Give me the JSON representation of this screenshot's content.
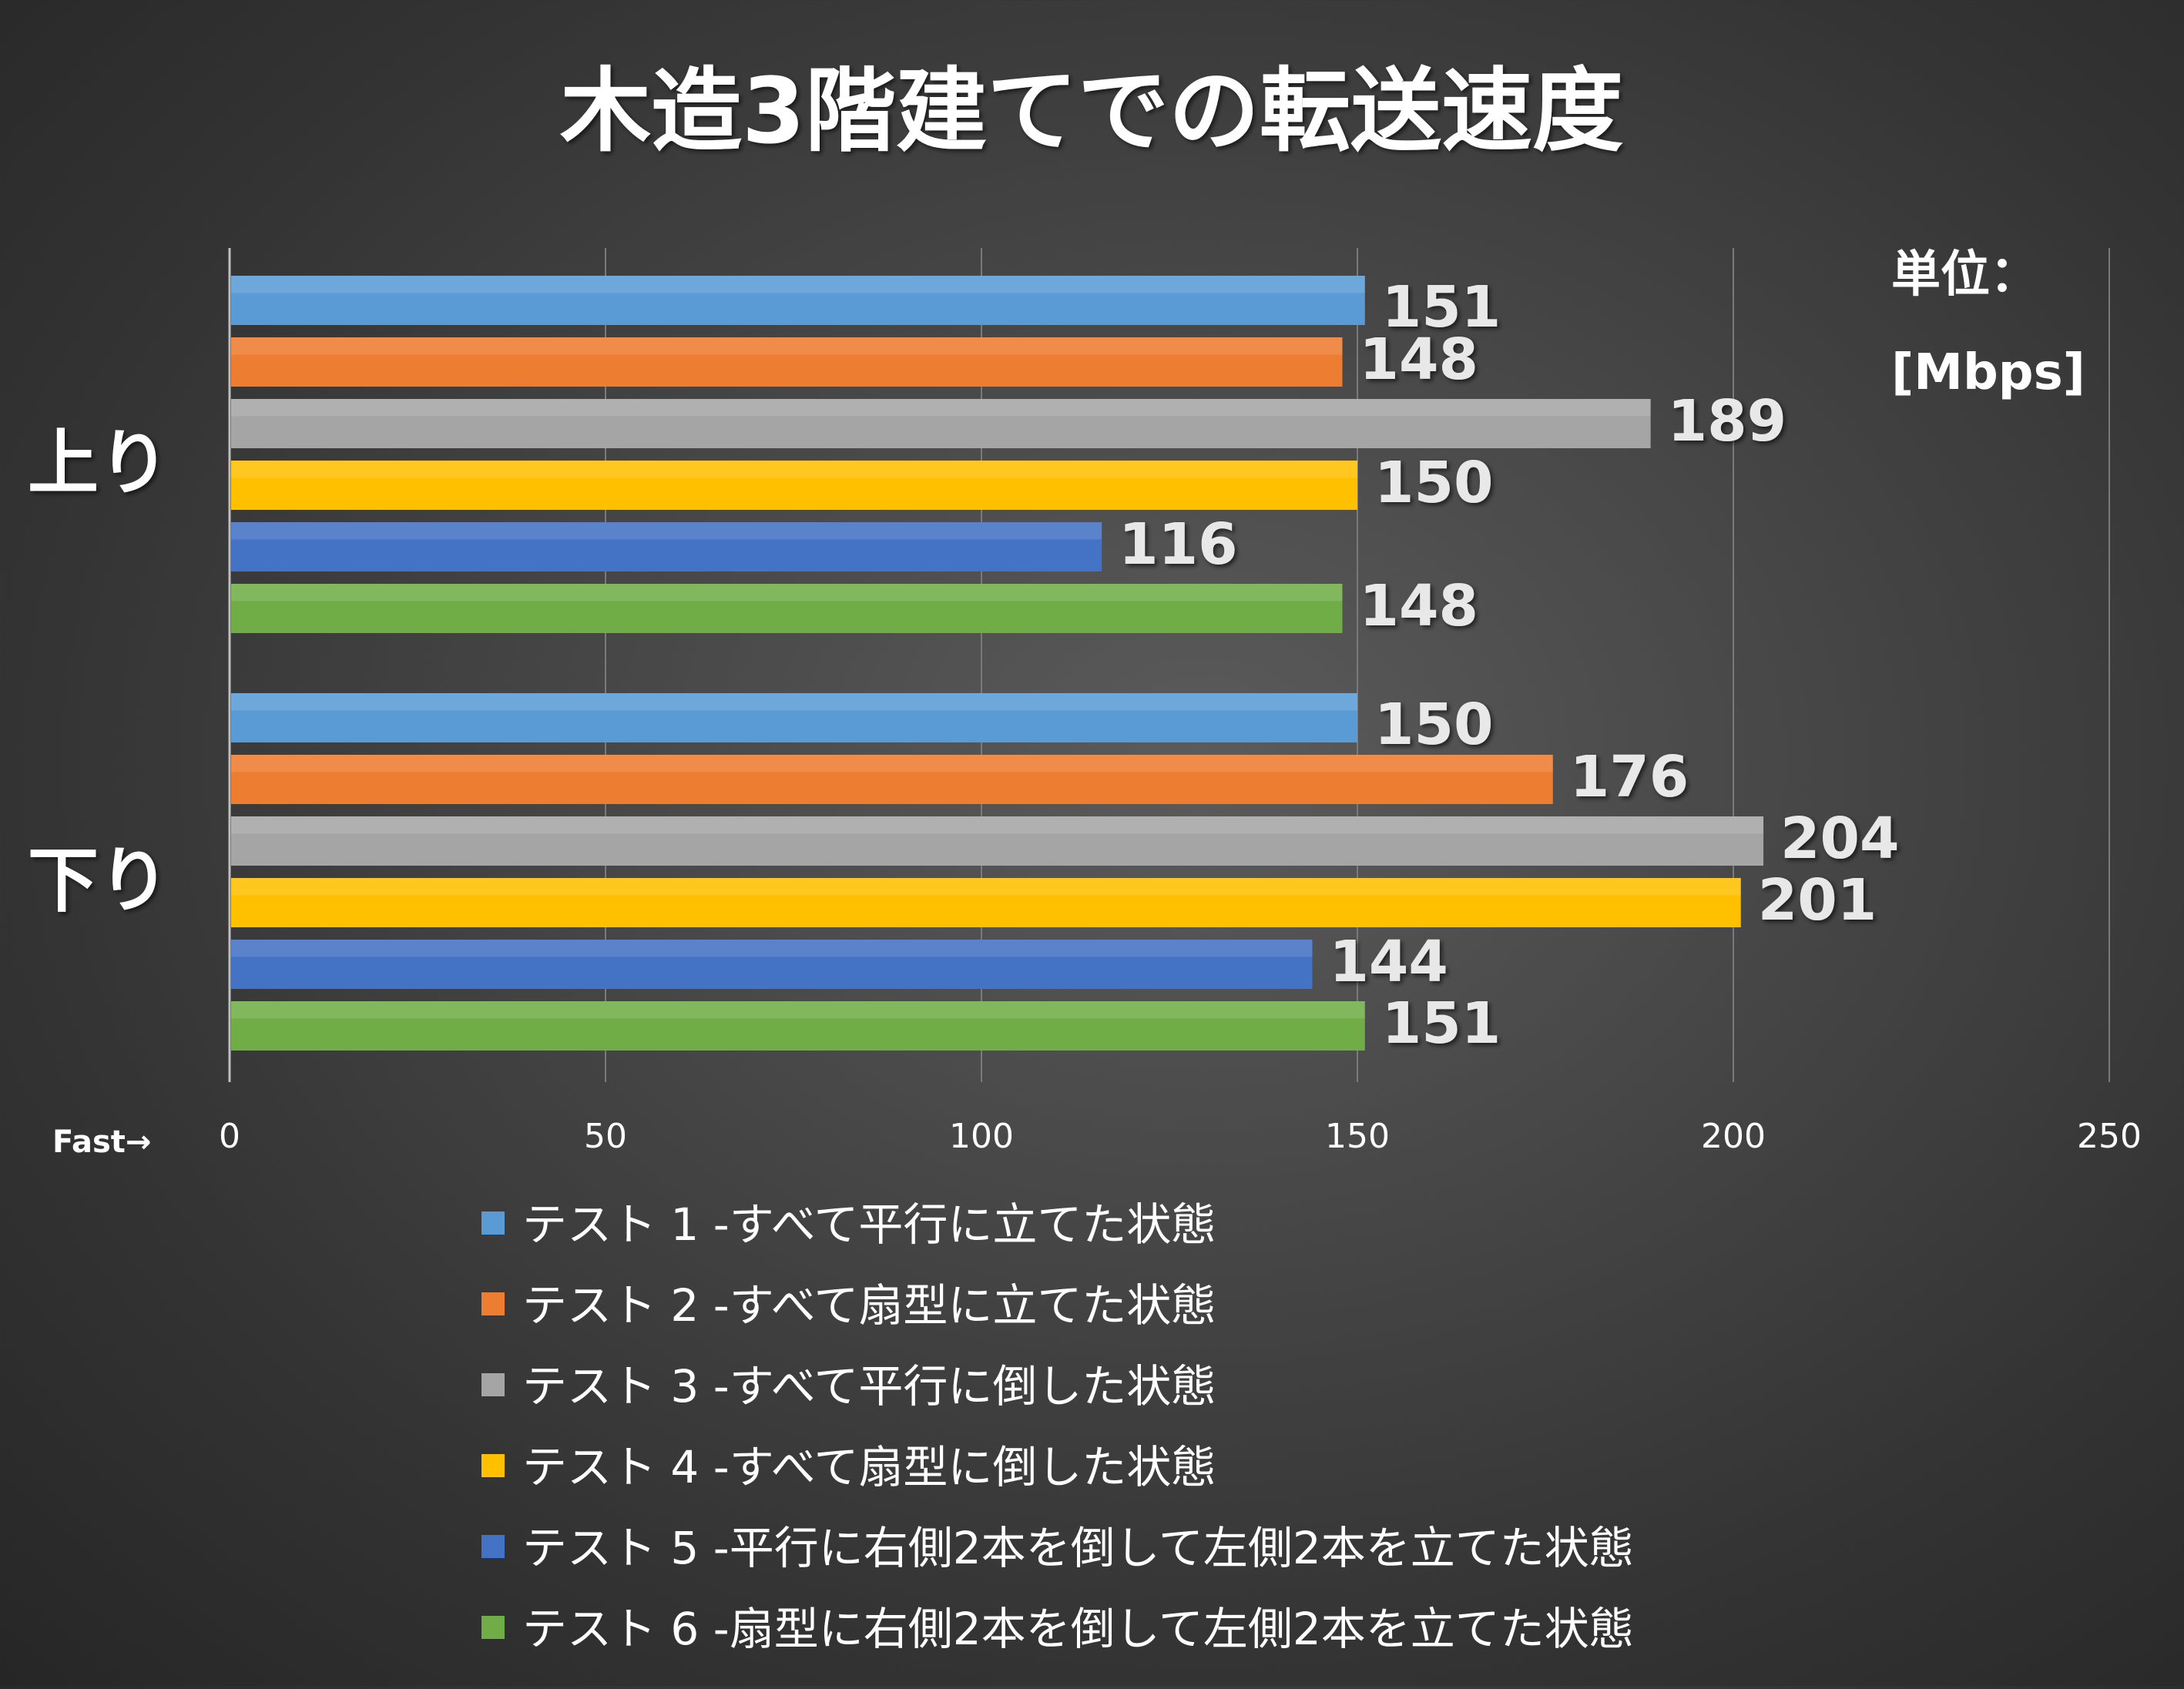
{
  "chart_data": {
    "type": "bar",
    "orientation": "horizontal",
    "title": "木造3階建てでの転送速度",
    "unit_label_line1": "単位：",
    "unit_label_line2": "[Mbps]",
    "xaxis_note": "Fast→",
    "categories": [
      "上り",
      "下り"
    ],
    "xlim": [
      0,
      250
    ],
    "xticks": [
      "0",
      "50",
      "100",
      "150",
      "200",
      "250"
    ],
    "grid": true,
    "legend_position": "bottom",
    "series": [
      {
        "name": "テスト 1 -すべて平行に立てた状態",
        "values": [
          151,
          150
        ],
        "color": "#5b9bd5"
      },
      {
        "name": "テスト 2 -すべて扇型に立てた状態",
        "values": [
          148,
          176
        ],
        "color": "#ed7d31"
      },
      {
        "name": "テスト 3 -すべて平行に倒した状態",
        "values": [
          189,
          204
        ],
        "color": "#a5a5a5"
      },
      {
        "name": "テスト 4 -すべて扇型に倒した状態",
        "values": [
          150,
          201
        ],
        "color": "#ffc000"
      },
      {
        "name": "テスト 5 -平行に右側2本を倒して左側2本を立てた状態",
        "values": [
          116,
          144
        ],
        "color": "#4472c4"
      },
      {
        "name": "テスト 6 -扇型に右側2本を倒して左側2本を立てた状態",
        "values": [
          148,
          151
        ],
        "color": "#70ad47"
      }
    ]
  }
}
